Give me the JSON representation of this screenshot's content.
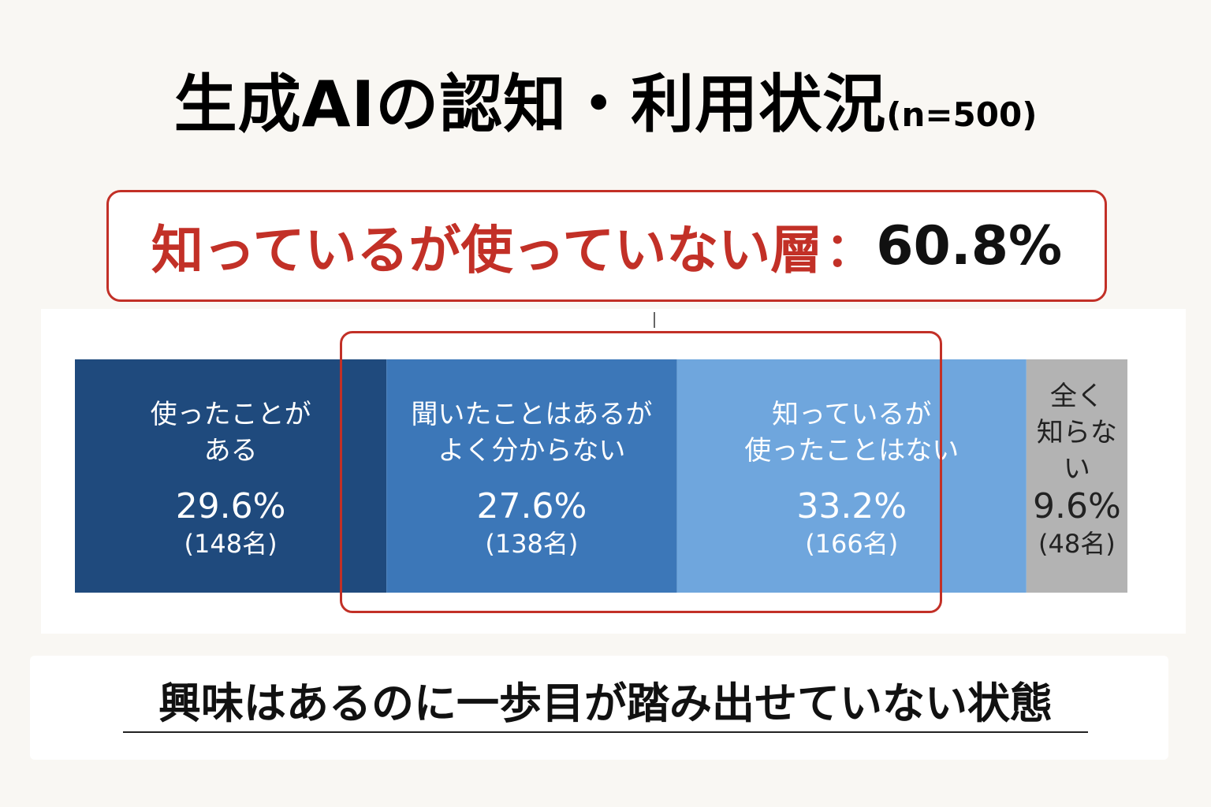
{
  "title": {
    "main": "生成AIの認知・利用状況",
    "n": "(n=500)"
  },
  "callout": {
    "label": "知っているが使っていない層",
    "separator": "：",
    "value": "60.8%"
  },
  "colors": {
    "accent_red": "#c23027",
    "seg1": "#1f4a7d",
    "seg2": "#3c77b8",
    "seg3": "#6fa6dd",
    "seg4": "#b3b3b3"
  },
  "chart_data": {
    "type": "bar",
    "orientation": "horizontal-stacked-100",
    "categories": [
      "使ったことが\nある",
      "聞いたことはあるが\nよく分からない",
      "知っているが\n使ったことはない",
      "全く\n知らない"
    ],
    "values": [
      29.6,
      27.6,
      33.2,
      9.6
    ],
    "value_labels": [
      "29.6%",
      "27.6%",
      "33.2%",
      "9.6%"
    ],
    "counts": [
      148,
      138,
      166,
      48
    ],
    "count_labels": [
      "(148名)",
      "(138名)",
      "(166名)",
      "(48名)"
    ],
    "highlighted_categories": [
      1,
      2
    ],
    "highlight_total": "60.8%"
  },
  "footer": {
    "text": "興味はあるのに一歩目が踏み出せていない状態"
  }
}
